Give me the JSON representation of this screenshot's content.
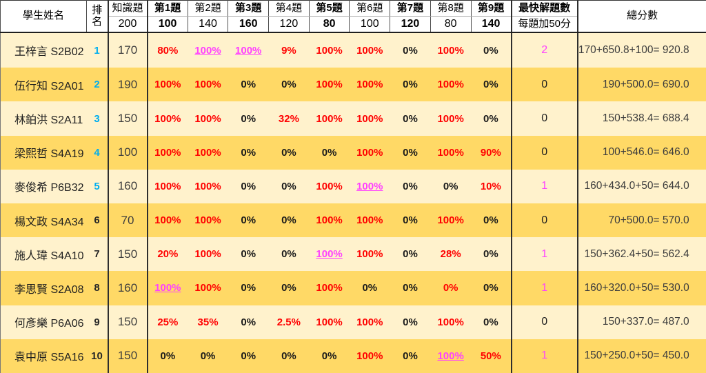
{
  "colors": {
    "row_light": "#FFF2CC",
    "row_dark": "#FFD966",
    "score_red": "#FF0000",
    "score_link_magenta": "#FF40FF",
    "rank_cyan": "#00AEEF"
  },
  "header": {
    "col_name": "學生姓名",
    "col_rank": "排名",
    "knowledge": {
      "label": "知識題",
      "points": "200"
    },
    "questions": [
      {
        "label": "第1題",
        "points": "100",
        "bold": true
      },
      {
        "label": "第2題",
        "points": "140",
        "bold": false
      },
      {
        "label": "第3題",
        "points": "160",
        "bold": true
      },
      {
        "label": "第4題",
        "points": "120",
        "bold": false
      },
      {
        "label": "第5題",
        "points": "80",
        "bold": true
      },
      {
        "label": "第6題",
        "points": "100",
        "bold": false
      },
      {
        "label": "第7題",
        "points": "120",
        "bold": true
      },
      {
        "label": "第8題",
        "points": "80",
        "bold": false
      },
      {
        "label": "第9題",
        "points": "140",
        "bold": true
      }
    ],
    "fastest": {
      "line1": "最快解題數",
      "line2": "每題加50分"
    },
    "col_total": "總分數"
  },
  "rows": [
    {
      "name": "王梓言 S2B02",
      "rank": "1",
      "rank_color": "cyan",
      "knowledge": "170",
      "scores": [
        {
          "v": "80%",
          "c": "red"
        },
        {
          "v": "100%",
          "c": "link"
        },
        {
          "v": "100%",
          "c": "link"
        },
        {
          "v": "9%",
          "c": "red"
        },
        {
          "v": "100%",
          "c": "red"
        },
        {
          "v": "100%",
          "c": "red"
        },
        {
          "v": "0%",
          "c": "black"
        },
        {
          "v": "100%",
          "c": "red"
        },
        {
          "v": "0%",
          "c": "black"
        }
      ],
      "fastest": {
        "v": "2",
        "c": "magenta"
      },
      "total": "170+650.8+100= 920.8"
    },
    {
      "name": "伍行知 S2A01",
      "rank": "2",
      "rank_color": "cyan",
      "knowledge": "190",
      "scores": [
        {
          "v": "100%",
          "c": "red"
        },
        {
          "v": "100%",
          "c": "red"
        },
        {
          "v": "0%",
          "c": "black"
        },
        {
          "v": "0%",
          "c": "black"
        },
        {
          "v": "100%",
          "c": "red"
        },
        {
          "v": "100%",
          "c": "red"
        },
        {
          "v": "0%",
          "c": "black"
        },
        {
          "v": "100%",
          "c": "red"
        },
        {
          "v": "0%",
          "c": "black"
        }
      ],
      "fastest": {
        "v": "0",
        "c": "black"
      },
      "total": "190+500.0= 690.0"
    },
    {
      "name": "林鉑洪 S2A11",
      "rank": "3",
      "rank_color": "cyan",
      "knowledge": "150",
      "scores": [
        {
          "v": "100%",
          "c": "red"
        },
        {
          "v": "100%",
          "c": "red"
        },
        {
          "v": "0%",
          "c": "black"
        },
        {
          "v": "32%",
          "c": "red"
        },
        {
          "v": "100%",
          "c": "red"
        },
        {
          "v": "100%",
          "c": "red"
        },
        {
          "v": "0%",
          "c": "black"
        },
        {
          "v": "100%",
          "c": "red"
        },
        {
          "v": "0%",
          "c": "black"
        }
      ],
      "fastest": {
        "v": "0",
        "c": "black"
      },
      "total": "150+538.4= 688.4"
    },
    {
      "name": "梁熙哲 S4A19",
      "rank": "4",
      "rank_color": "cyan",
      "knowledge": "100",
      "scores": [
        {
          "v": "100%",
          "c": "red"
        },
        {
          "v": "100%",
          "c": "red"
        },
        {
          "v": "0%",
          "c": "black"
        },
        {
          "v": "0%",
          "c": "black"
        },
        {
          "v": "0%",
          "c": "black"
        },
        {
          "v": "100%",
          "c": "red"
        },
        {
          "v": "0%",
          "c": "black"
        },
        {
          "v": "100%",
          "c": "red"
        },
        {
          "v": "90%",
          "c": "red"
        }
      ],
      "fastest": {
        "v": "0",
        "c": "black"
      },
      "total": "100+546.0= 646.0"
    },
    {
      "name": "麥俊希 P6B32",
      "rank": "5",
      "rank_color": "cyan",
      "knowledge": "160",
      "scores": [
        {
          "v": "100%",
          "c": "red"
        },
        {
          "v": "100%",
          "c": "red"
        },
        {
          "v": "0%",
          "c": "black"
        },
        {
          "v": "0%",
          "c": "black"
        },
        {
          "v": "100%",
          "c": "red"
        },
        {
          "v": "100%",
          "c": "link"
        },
        {
          "v": "0%",
          "c": "black"
        },
        {
          "v": "0%",
          "c": "black"
        },
        {
          "v": "10%",
          "c": "red"
        }
      ],
      "fastest": {
        "v": "1",
        "c": "magenta"
      },
      "total": "160+434.0+50= 644.0"
    },
    {
      "name": "楊文政 S4A34",
      "rank": "6",
      "rank_color": "dark",
      "knowledge": "70",
      "scores": [
        {
          "v": "100%",
          "c": "red"
        },
        {
          "v": "100%",
          "c": "red"
        },
        {
          "v": "0%",
          "c": "black"
        },
        {
          "v": "0%",
          "c": "black"
        },
        {
          "v": "100%",
          "c": "red"
        },
        {
          "v": "100%",
          "c": "red"
        },
        {
          "v": "0%",
          "c": "black"
        },
        {
          "v": "100%",
          "c": "red"
        },
        {
          "v": "0%",
          "c": "black"
        }
      ],
      "fastest": {
        "v": "0",
        "c": "black"
      },
      "total": "70+500.0= 570.0"
    },
    {
      "name": "施人瑋 S4A10",
      "rank": "7",
      "rank_color": "dark",
      "knowledge": "150",
      "scores": [
        {
          "v": "20%",
          "c": "red"
        },
        {
          "v": "100%",
          "c": "red"
        },
        {
          "v": "0%",
          "c": "black"
        },
        {
          "v": "0%",
          "c": "black"
        },
        {
          "v": "100%",
          "c": "link"
        },
        {
          "v": "100%",
          "c": "red"
        },
        {
          "v": "0%",
          "c": "black"
        },
        {
          "v": "28%",
          "c": "red"
        },
        {
          "v": "0%",
          "c": "black"
        }
      ],
      "fastest": {
        "v": "1",
        "c": "magenta"
      },
      "total": "150+362.4+50= 562.4"
    },
    {
      "name": "李思賢 S2A08",
      "rank": "8",
      "rank_color": "dark",
      "knowledge": "160",
      "scores": [
        {
          "v": "100%",
          "c": "link"
        },
        {
          "v": "100%",
          "c": "red"
        },
        {
          "v": "0%",
          "c": "black"
        },
        {
          "v": "0%",
          "c": "black"
        },
        {
          "v": "100%",
          "c": "red"
        },
        {
          "v": "0%",
          "c": "black"
        },
        {
          "v": "0%",
          "c": "black"
        },
        {
          "v": "0%",
          "c": "red"
        },
        {
          "v": "0%",
          "c": "black"
        }
      ],
      "fastest": {
        "v": "1",
        "c": "magenta"
      },
      "total": "160+320.0+50= 530.0"
    },
    {
      "name": "何彥樂 P6A06",
      "rank": "9",
      "rank_color": "dark",
      "knowledge": "150",
      "scores": [
        {
          "v": "25%",
          "c": "red"
        },
        {
          "v": "35%",
          "c": "red"
        },
        {
          "v": "0%",
          "c": "black"
        },
        {
          "v": "2.5%",
          "c": "red"
        },
        {
          "v": "100%",
          "c": "red"
        },
        {
          "v": "100%",
          "c": "red"
        },
        {
          "v": "0%",
          "c": "black"
        },
        {
          "v": "100%",
          "c": "red"
        },
        {
          "v": "0%",
          "c": "black"
        }
      ],
      "fastest": {
        "v": "0",
        "c": "black"
      },
      "total": "150+337.0= 487.0"
    },
    {
      "name": "袁中原 S5A16",
      "rank": "10",
      "rank_color": "dark",
      "knowledge": "150",
      "scores": [
        {
          "v": "0%",
          "c": "black"
        },
        {
          "v": "0%",
          "c": "black"
        },
        {
          "v": "0%",
          "c": "black"
        },
        {
          "v": "0%",
          "c": "black"
        },
        {
          "v": "0%",
          "c": "black"
        },
        {
          "v": "100%",
          "c": "red"
        },
        {
          "v": "0%",
          "c": "black"
        },
        {
          "v": "100%",
          "c": "link"
        },
        {
          "v": "50%",
          "c": "red"
        }
      ],
      "fastest": {
        "v": "1",
        "c": "magenta"
      },
      "total": "150+250.0+50= 450.0"
    }
  ]
}
